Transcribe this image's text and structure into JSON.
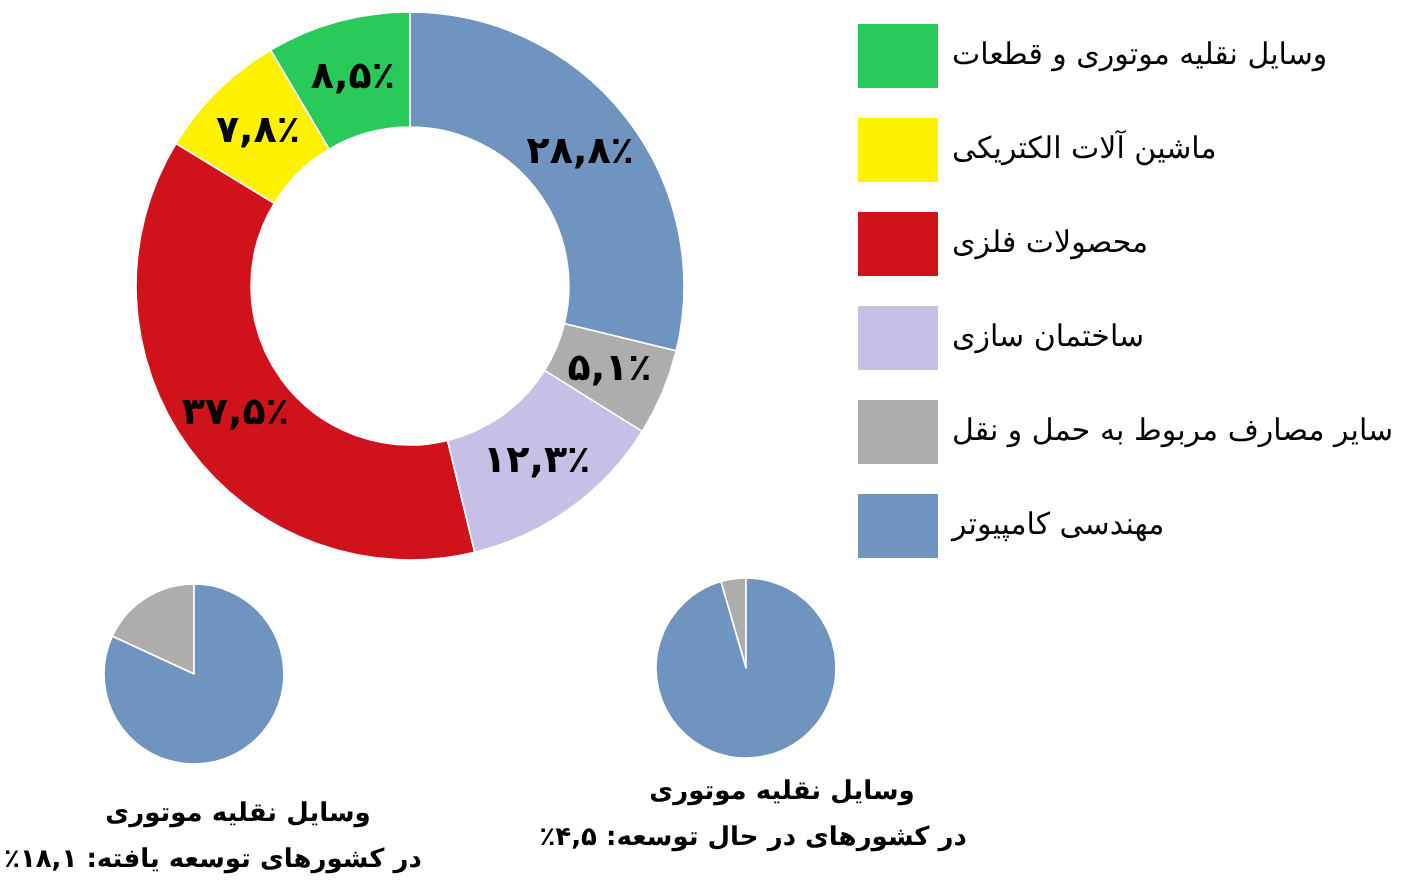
{
  "chart_data": [
    {
      "type": "donut",
      "categories": [
        "وسایل نقلیه موتوری و قطعات",
        "ماشین آلات الکتریکی",
        "محصولات فلزی",
        "ساختمان سازی",
        "سایر مصارف مربوط به حمل و نقل",
        "مهندسی کامپیوتر"
      ],
      "values": [
        8.5,
        7.8,
        37.5,
        12.3,
        5.1,
        28.8
      ],
      "colors": [
        "#2aca5a",
        "#fff200",
        "#d0121b",
        "#c6bfe6",
        "#adadad",
        "#7094c0"
      ],
      "value_labels": [
        "۸,۵٪",
        "۷,۸٪",
        "۳۷,۵٪",
        "۱۲,۳٪",
        "۵,۱٪",
        "۲۸,۸٪"
      ],
      "legend": "right"
    },
    {
      "type": "pie",
      "title": "وسایل نقلیه موتوری",
      "subtitle": "در کشورهای توسعه یافته: ۱۸,۱٪",
      "categories": [
        null,
        null
      ],
      "values": [
        18.1,
        81.9
      ],
      "colors": [
        "#adadad",
        "#7094c0"
      ]
    },
    {
      "type": "pie",
      "title": "وسایل نقلیه موتوری",
      "subtitle": "در کشورهای در حال توسعه: ۴,۵٪",
      "categories": [
        null,
        null
      ],
      "values": [
        4.5,
        95.5
      ],
      "colors": [
        "#adadad",
        "#7094c0"
      ]
    }
  ]
}
